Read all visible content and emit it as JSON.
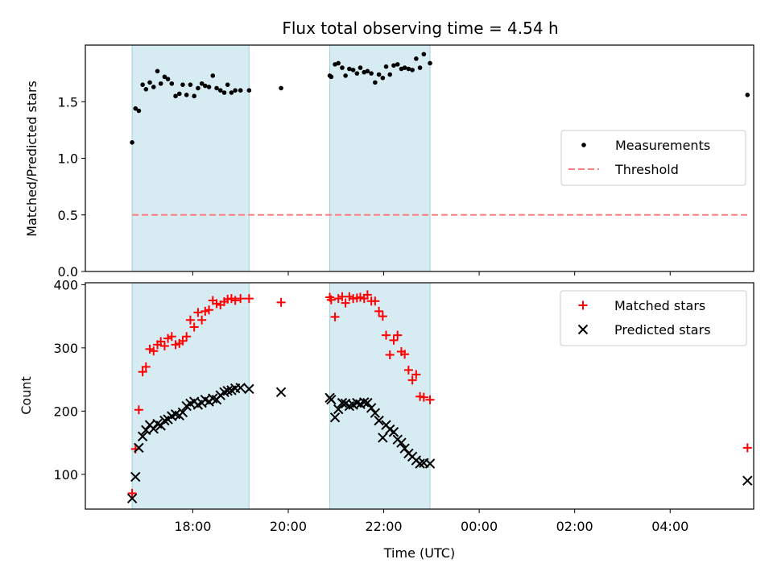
{
  "title": "Flux total observing time = 4.54 h",
  "chart_data": [
    {
      "type": "scatter",
      "panel": "top",
      "ylabel": "Matched/Predicted stars",
      "xlabel": "",
      "x_unit": "hours since 00:00 of first night (values > 24 are next day)",
      "xlim": [
        15.75,
        29.75
      ],
      "ylim": [
        0,
        2.0
      ],
      "yticks": [
        0.0,
        0.5,
        1.0,
        1.5
      ],
      "ytick_labels": [
        "0.0",
        "0.5",
        "1.0",
        "1.5"
      ],
      "legend_position": "center-right",
      "shaded_intervals": [
        [
          16.73,
          19.18
        ],
        [
          20.87,
          22.97
        ]
      ],
      "series": [
        {
          "name": "Measurements",
          "marker": "dot",
          "color": "#000000",
          "x": [
            16.73,
            16.8,
            16.87,
            16.95,
            17.02,
            17.1,
            17.18,
            17.26,
            17.33,
            17.41,
            17.48,
            17.56,
            17.64,
            17.72,
            17.79,
            17.87,
            17.95,
            18.03,
            18.11,
            18.19,
            18.26,
            18.34,
            18.42,
            18.5,
            18.58,
            18.66,
            18.73,
            18.81,
            18.89,
            19.0,
            19.18,
            19.85,
            20.87,
            20.9,
            20.98,
            21.05,
            21.13,
            21.2,
            21.28,
            21.36,
            21.44,
            21.51,
            21.59,
            21.66,
            21.74,
            21.82,
            21.9,
            21.98,
            22.05,
            22.13,
            22.21,
            22.29,
            22.37,
            22.44,
            22.52,
            22.6,
            22.68,
            22.76,
            22.84,
            22.97,
            29.62
          ],
          "values": [
            1.14,
            1.44,
            1.42,
            1.65,
            1.61,
            1.67,
            1.63,
            1.77,
            1.66,
            1.72,
            1.7,
            1.66,
            1.55,
            1.57,
            1.65,
            1.56,
            1.65,
            1.55,
            1.62,
            1.66,
            1.64,
            1.63,
            1.73,
            1.62,
            1.6,
            1.58,
            1.65,
            1.58,
            1.6,
            1.6,
            1.6,
            1.62,
            1.73,
            1.72,
            1.83,
            1.84,
            1.8,
            1.73,
            1.79,
            1.78,
            1.75,
            1.8,
            1.76,
            1.77,
            1.75,
            1.67,
            1.74,
            1.71,
            1.81,
            1.74,
            1.82,
            1.83,
            1.79,
            1.8,
            1.79,
            1.78,
            1.88,
            1.8,
            1.92,
            1.84,
            1.56
          ]
        },
        {
          "name": "Threshold",
          "style": "dashed",
          "color": "#ff7f7f",
          "x": [
            16.73,
            29.62
          ],
          "values": [
            0.5,
            0.5
          ]
        }
      ]
    },
    {
      "type": "scatter",
      "panel": "bottom",
      "ylabel": "Count",
      "xlabel": "Time (UTC)",
      "xlim": [
        15.75,
        29.75
      ],
      "ylim": [
        45,
        403
      ],
      "yticks": [
        100,
        200,
        300,
        400
      ],
      "ytick_labels": [
        "100",
        "200",
        "300",
        "400"
      ],
      "xticks": [
        18,
        20,
        22,
        24,
        26,
        28
      ],
      "xtick_labels": [
        "18:00",
        "20:00",
        "22:00",
        "00:00",
        "02:00",
        "04:00"
      ],
      "legend_position": "top-right",
      "shaded_intervals": [
        [
          16.73,
          19.18
        ],
        [
          20.87,
          22.97
        ]
      ],
      "series": [
        {
          "name": "Matched stars",
          "marker": "plus",
          "color": "#ff0000",
          "x": [
            16.73,
            16.8,
            16.87,
            16.95,
            17.02,
            17.1,
            17.18,
            17.26,
            17.33,
            17.41,
            17.48,
            17.56,
            17.64,
            17.72,
            17.79,
            17.87,
            17.95,
            18.03,
            18.11,
            18.19,
            18.26,
            18.34,
            18.42,
            18.5,
            18.58,
            18.66,
            18.73,
            18.81,
            18.89,
            19.0,
            19.18,
            19.85,
            20.87,
            20.9,
            20.98,
            21.05,
            21.13,
            21.2,
            21.28,
            21.36,
            21.44,
            21.51,
            21.59,
            21.66,
            21.74,
            21.82,
            21.9,
            21.98,
            22.05,
            22.13,
            22.21,
            22.29,
            22.37,
            22.44,
            22.52,
            22.6,
            22.68,
            22.76,
            22.84,
            22.97,
            29.62
          ],
          "values": [
            70,
            140,
            202,
            262,
            270,
            298,
            295,
            305,
            310,
            303,
            315,
            318,
            305,
            307,
            311,
            318,
            344,
            333,
            356,
            344,
            358,
            360,
            375,
            370,
            368,
            373,
            377,
            378,
            375,
            378,
            378,
            372,
            380,
            376,
            349,
            378,
            381,
            371,
            381,
            378,
            379,
            380,
            378,
            384,
            374,
            374,
            358,
            350,
            320,
            289,
            312,
            320,
            294,
            290,
            265,
            249,
            258,
            223,
            222,
            218,
            142
          ]
        },
        {
          "name": "Predicted stars",
          "marker": "x",
          "color": "#000000",
          "x": [
            16.73,
            16.8,
            16.87,
            16.95,
            17.02,
            17.1,
            17.18,
            17.26,
            17.33,
            17.41,
            17.48,
            17.56,
            17.64,
            17.72,
            17.79,
            17.87,
            17.95,
            18.03,
            18.11,
            18.19,
            18.26,
            18.34,
            18.42,
            18.5,
            18.58,
            18.66,
            18.73,
            18.81,
            18.89,
            19.0,
            19.18,
            19.85,
            20.87,
            20.9,
            20.98,
            21.05,
            21.13,
            21.2,
            21.28,
            21.36,
            21.44,
            21.51,
            21.59,
            21.66,
            21.74,
            21.82,
            21.9,
            21.98,
            22.05,
            22.13,
            22.21,
            22.29,
            22.37,
            22.44,
            22.52,
            22.6,
            22.68,
            22.76,
            22.84,
            22.97,
            29.62
          ],
          "values": [
            62,
            96,
            142,
            160,
            170,
            178,
            172,
            180,
            177,
            185,
            187,
            192,
            195,
            193,
            198,
            208,
            212,
            215,
            210,
            213,
            218,
            215,
            220,
            218,
            225,
            230,
            232,
            233,
            236,
            237,
            235,
            230,
            221,
            218,
            190,
            203,
            213,
            212,
            208,
            210,
            213,
            211,
            214,
            213,
            205,
            197,
            185,
            158,
            178,
            171,
            167,
            155,
            150,
            141,
            133,
            128,
            122,
            117,
            118,
            117,
            90
          ]
        }
      ]
    }
  ]
}
